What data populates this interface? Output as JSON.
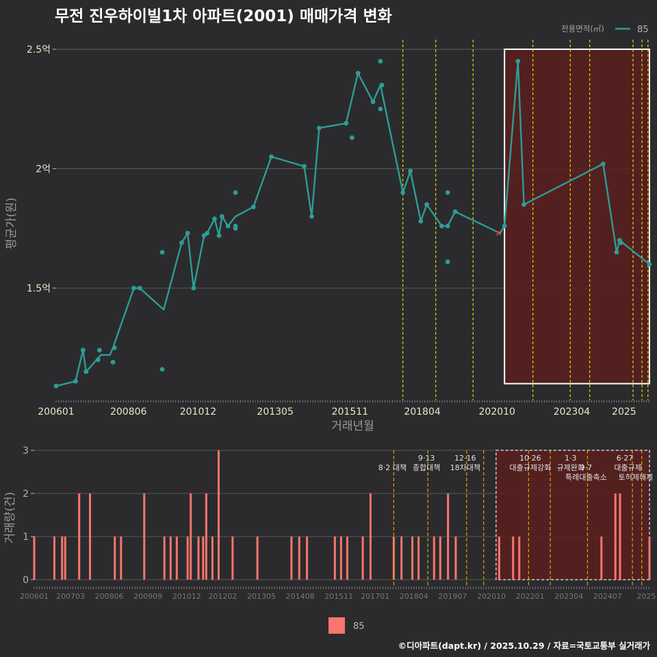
{
  "title": "무전 진우하이빌1차 아파트(2001) 매매가격 변화",
  "legend": {
    "title": "전용면적(㎡)",
    "series_label": "85"
  },
  "bottom_legend": {
    "label": "85"
  },
  "credit": "©디아파트(dapt.kr) / 2025.10.29 / 자료=국토교통부 실거래가",
  "colors": {
    "line": "#2e9c96",
    "bar": "#f8766d",
    "highlight_fill": "#5a1e1e",
    "vline": "#e3d600",
    "vline_bar": "#e0a000"
  },
  "chart_data": [
    {
      "type": "line",
      "title": "무전 진우하이빌1차 아파트(2001) 매매가격 변화",
      "xlabel": "거래년월",
      "ylabel": "평균가(원)",
      "x_range": [
        2006.0,
        2025.85
      ],
      "ylim": [
        1.03,
        2.54
      ],
      "y_ticks": [
        {
          "value": 1.5,
          "label": "1.5억"
        },
        {
          "value": 2.0,
          "label": "2억"
        },
        {
          "value": 2.5,
          "label": "2.5억"
        }
      ],
      "x_ticks": [
        {
          "value": 2006.0,
          "label": "200601"
        },
        {
          "value": 2008.42,
          "label": "200806"
        },
        {
          "value": 2010.75,
          "label": "201012"
        },
        {
          "value": 2013.33,
          "label": "201305"
        },
        {
          "value": 2015.83,
          "label": "201511"
        },
        {
          "value": 2018.25,
          "label": "201804"
        },
        {
          "value": 2020.75,
          "label": "202010"
        },
        {
          "value": 2023.25,
          "label": "202304"
        },
        {
          "value": 2025.0,
          "label": "2025"
        }
      ],
      "series": [
        {
          "name": "85",
          "line": [
            [
              2006.0,
              1.09
            ],
            [
              2006.65,
              1.11
            ],
            [
              2006.9,
              1.24
            ],
            [
              2007.0,
              1.15
            ],
            [
              2007.5,
              1.22
            ],
            [
              2007.8,
              1.22
            ],
            [
              2007.9,
              1.25
            ],
            [
              2008.6,
              1.5
            ],
            [
              2008.8,
              1.5
            ],
            [
              2009.6,
              1.41
            ],
            [
              2010.2,
              1.69
            ],
            [
              2010.4,
              1.73
            ],
            [
              2010.6,
              1.5
            ],
            [
              2010.95,
              1.72
            ],
            [
              2011.05,
              1.73
            ],
            [
              2011.3,
              1.79
            ],
            [
              2011.45,
              1.72
            ],
            [
              2011.55,
              1.8
            ],
            [
              2011.75,
              1.76
            ],
            [
              2012.0,
              1.8
            ],
            [
              2012.6,
              1.84
            ],
            [
              2013.2,
              2.05
            ],
            [
              2014.3,
              2.01
            ],
            [
              2014.55,
              1.8
            ],
            [
              2014.8,
              2.17
            ],
            [
              2015.7,
              2.19
            ],
            [
              2016.1,
              2.4
            ],
            [
              2016.6,
              2.28
            ],
            [
              2016.85,
              2.35
            ],
            [
              2017.6,
              1.9
            ],
            [
              2017.85,
              1.99
            ],
            [
              2018.2,
              1.78
            ],
            [
              2018.4,
              1.85
            ],
            [
              2018.9,
              1.76
            ],
            [
              2019.1,
              1.76
            ],
            [
              2019.35,
              1.82
            ],
            [
              2020.85,
              1.73
            ],
            [
              2021.0,
              1.76
            ],
            [
              2021.45,
              2.45
            ],
            [
              2021.65,
              1.85
            ],
            [
              2024.3,
              2.02
            ],
            [
              2024.75,
              1.65
            ],
            [
              2024.85,
              1.7
            ],
            [
              2025.85,
              1.6
            ]
          ],
          "points": [
            [
              2006.0,
              1.09
            ],
            [
              2006.65,
              1.11
            ],
            [
              2006.9,
              1.24
            ],
            [
              2007.0,
              1.15
            ],
            [
              2007.4,
              1.2
            ],
            [
              2007.45,
              1.24
            ],
            [
              2007.9,
              1.19
            ],
            [
              2007.95,
              1.25
            ],
            [
              2008.6,
              1.5
            ],
            [
              2008.8,
              1.5
            ],
            [
              2009.55,
              1.16
            ],
            [
              2009.55,
              1.65
            ],
            [
              2010.2,
              1.69
            ],
            [
              2010.4,
              1.73
            ],
            [
              2010.6,
              1.5
            ],
            [
              2010.95,
              1.72
            ],
            [
              2011.05,
              1.73
            ],
            [
              2011.3,
              1.79
            ],
            [
              2011.45,
              1.72
            ],
            [
              2011.55,
              1.8
            ],
            [
              2011.75,
              1.76
            ],
            [
              2012.0,
              1.75
            ],
            [
              2012.0,
              1.76
            ],
            [
              2012.0,
              1.9
            ],
            [
              2012.6,
              1.84
            ],
            [
              2013.2,
              2.05
            ],
            [
              2014.3,
              2.01
            ],
            [
              2014.55,
              1.8
            ],
            [
              2014.8,
              2.17
            ],
            [
              2015.7,
              2.19
            ],
            [
              2015.9,
              2.13
            ],
            [
              2016.1,
              2.4
            ],
            [
              2016.6,
              2.28
            ],
            [
              2016.85,
              2.45
            ],
            [
              2016.85,
              2.25
            ],
            [
              2016.9,
              2.35
            ],
            [
              2017.6,
              1.9
            ],
            [
              2017.85,
              1.99
            ],
            [
              2018.2,
              1.78
            ],
            [
              2018.4,
              1.85
            ],
            [
              2018.9,
              1.76
            ],
            [
              2019.1,
              1.76
            ],
            [
              2019.1,
              1.9
            ],
            [
              2019.1,
              1.61
            ],
            [
              2019.35,
              1.82
            ],
            [
              2021.0,
              1.76
            ],
            [
              2021.45,
              2.45
            ],
            [
              2021.65,
              1.85
            ],
            [
              2024.3,
              2.02
            ],
            [
              2024.75,
              1.65
            ],
            [
              2024.85,
              1.7
            ],
            [
              2024.9,
              1.69
            ],
            [
              2025.85,
              1.6
            ]
          ]
        }
      ],
      "cancelled_marks": [
        [
          2020.8,
          1.73
        ]
      ],
      "policy_lines": [
        2017.6,
        2018.7,
        2019.95,
        2021.95,
        2023.2,
        2023.85,
        2025.3,
        2025.6,
        2025.8
      ],
      "highlight": {
        "x_start": 2021.0,
        "x_end": 2025.85,
        "y_low": 1.1,
        "y_high": 2.5
      }
    },
    {
      "type": "bar",
      "xlabel": "",
      "ylabel": "거래량(건)",
      "x_range": [
        2006.0,
        2025.85
      ],
      "ylim": [
        0,
        3
      ],
      "y_ticks": [
        0,
        1,
        2,
        3
      ],
      "x_ticks": [
        {
          "value": 2006.0,
          "label": "200601"
        },
        {
          "value": 2007.17,
          "label": "200703"
        },
        {
          "value": 2008.42,
          "label": "200806"
        },
        {
          "value": 2009.67,
          "label": "200909"
        },
        {
          "value": 2010.92,
          "label": "201012"
        },
        {
          "value": 2012.08,
          "label": "201202"
        },
        {
          "value": 2013.33,
          "label": "201305"
        },
        {
          "value": 2014.58,
          "label": "201408"
        },
        {
          "value": 2015.83,
          "label": "201511"
        },
        {
          "value": 2017.0,
          "label": "201701"
        },
        {
          "value": 2018.25,
          "label": "201804"
        },
        {
          "value": 2019.5,
          "label": "201907"
        },
        {
          "value": 2020.75,
          "label": "202010"
        },
        {
          "value": 2022.0,
          "label": "202201"
        },
        {
          "value": 2023.25,
          "label": "202304"
        },
        {
          "value": 2024.5,
          "label": "202407"
        },
        {
          "value": 2025.75,
          "label": "2025"
        }
      ],
      "series": [
        {
          "name": "85",
          "bars": [
            [
              2006.0,
              1
            ],
            [
              2006.65,
              1
            ],
            [
              2006.9,
              1
            ],
            [
              2007.0,
              1
            ],
            [
              2007.45,
              2
            ],
            [
              2007.8,
              2
            ],
            [
              2008.6,
              1
            ],
            [
              2008.8,
              1
            ],
            [
              2009.55,
              2
            ],
            [
              2010.2,
              1
            ],
            [
              2010.4,
              1
            ],
            [
              2010.6,
              1
            ],
            [
              2010.95,
              1
            ],
            [
              2011.05,
              2
            ],
            [
              2011.3,
              1
            ],
            [
              2011.45,
              1
            ],
            [
              2011.55,
              2
            ],
            [
              2011.75,
              1
            ],
            [
              2011.95,
              3
            ],
            [
              2012.4,
              1
            ],
            [
              2013.2,
              1
            ],
            [
              2014.3,
              1
            ],
            [
              2014.55,
              1
            ],
            [
              2014.8,
              1
            ],
            [
              2015.7,
              1
            ],
            [
              2015.9,
              1
            ],
            [
              2016.1,
              1
            ],
            [
              2016.6,
              1
            ],
            [
              2016.85,
              2
            ],
            [
              2017.6,
              1
            ],
            [
              2017.85,
              1
            ],
            [
              2018.2,
              1
            ],
            [
              2018.4,
              1
            ],
            [
              2018.9,
              1
            ],
            [
              2019.1,
              1
            ],
            [
              2019.35,
              2
            ],
            [
              2019.6,
              1
            ],
            [
              2021.0,
              1
            ],
            [
              2021.45,
              1
            ],
            [
              2021.65,
              1
            ],
            [
              2024.3,
              1
            ],
            [
              2024.75,
              2
            ],
            [
              2024.9,
              2
            ],
            [
              2025.85,
              1
            ]
          ]
        }
      ],
      "policy_lines": [
        2017.6,
        2018.7,
        2019.95,
        2020.5,
        2021.95,
        2022.65,
        2023.85,
        2025.3,
        2025.6
      ],
      "policy_labels": [
        {
          "x": 2017.6,
          "row": 0,
          "text": "8·2 대책"
        },
        {
          "x": 2018.7,
          "row": 1,
          "text": "9·13"
        },
        {
          "x": 2018.7,
          "row": 0,
          "text": "종합대책"
        },
        {
          "x": 2019.95,
          "row": 1,
          "text": "12·16"
        },
        {
          "x": 2019.95,
          "row": 0,
          "text": "18차대책"
        },
        {
          "x": 2022.05,
          "row": 1,
          "text": "10·26"
        },
        {
          "x": 2022.05,
          "row": 0,
          "text": "대출규제강화"
        },
        {
          "x": 2023.35,
          "row": 1,
          "text": "1·3"
        },
        {
          "x": 2023.35,
          "row": 0,
          "text": "규제완화"
        },
        {
          "x": 2023.85,
          "row": 0,
          "text": "9·7"
        },
        {
          "x": 2023.85,
          "row": -1,
          "text": "특례대출축소"
        },
        {
          "x": 2025.1,
          "row": 1,
          "text": "6·27"
        },
        {
          "x": 2025.2,
          "row": 0,
          "text": "대출규제"
        },
        {
          "x": 2025.45,
          "row": -1,
          "text": "토허제해제"
        }
      ],
      "highlight": {
        "x_start": 2020.9,
        "x_end": 2025.85
      }
    }
  ]
}
